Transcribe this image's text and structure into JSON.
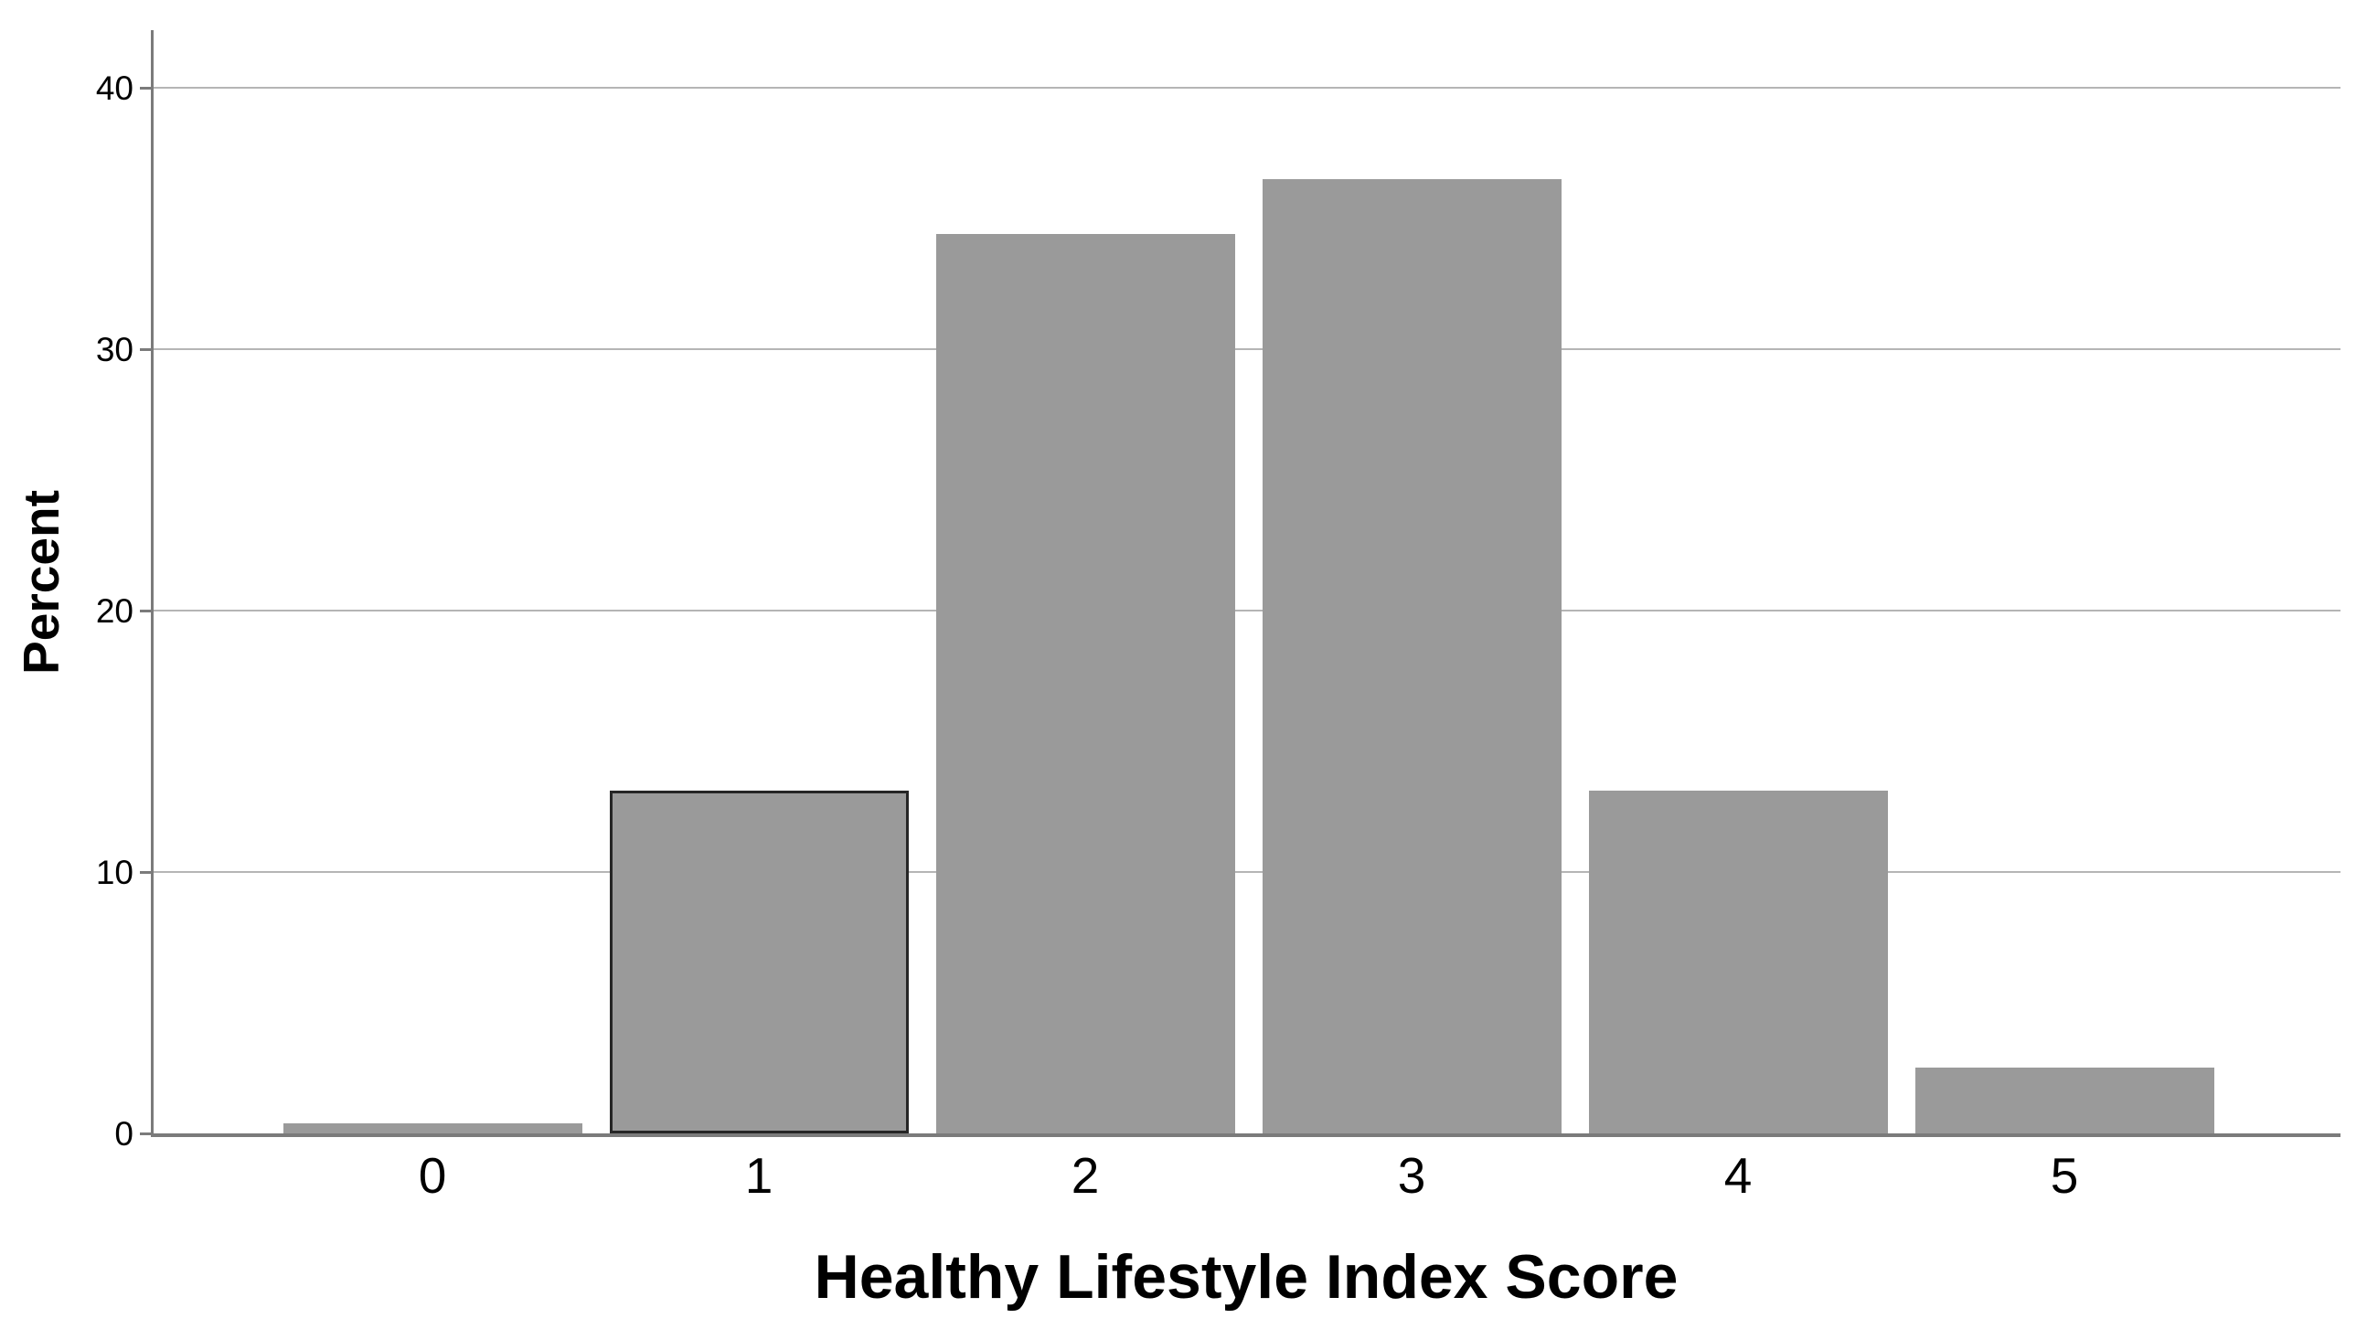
{
  "chart_data": {
    "type": "bar",
    "title": "",
    "categories": [
      "0",
      "1",
      "2",
      "3",
      "4",
      "5"
    ],
    "values": [
      0.4,
      13.1,
      34.4,
      36.5,
      13.1,
      2.5
    ],
    "xlabel": "Healthy Lifestyle Index Score",
    "ylabel": "Percent",
    "ylim": [
      0,
      42.2
    ],
    "yticks": [
      0,
      10,
      20,
      30,
      40
    ],
    "grid": true,
    "legend": "none",
    "highlighted_bar_index": 1,
    "colors": {
      "bar_fill": "#9A9A9A",
      "highlighted_bar_border": "#262626",
      "axis_line": "#7B7B7B",
      "gridline": "#B5B5B5",
      "text": "#000000",
      "background": "#FFFFFF"
    }
  }
}
